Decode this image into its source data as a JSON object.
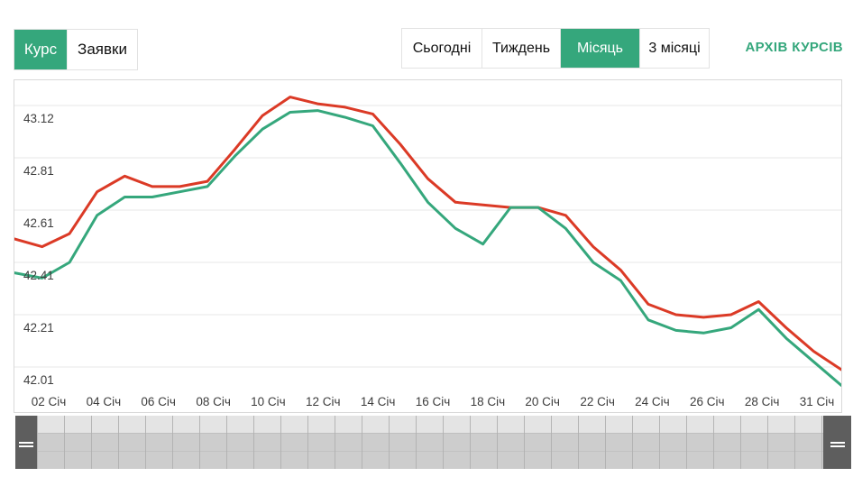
{
  "toggle": {
    "items": [
      {
        "label": "Курс",
        "active": true
      },
      {
        "label": "Заявки",
        "active": false
      }
    ]
  },
  "range_tabs": {
    "items": [
      {
        "label": "Сьогодні",
        "active": false
      },
      {
        "label": "Тиждень",
        "active": false
      },
      {
        "label": "Місяць",
        "active": true
      },
      {
        "label": "3 місяці",
        "active": false
      }
    ]
  },
  "archive_link": "АРХІВ КУРСІВ",
  "colors": {
    "accent_green": "#35a77c",
    "line_red": "#db3a26",
    "line_green": "#35a77c",
    "gridline": "#e7e7e7",
    "axis_text": "#3d3d3d",
    "chart_border": "#d9d9d9",
    "nav_handle": "#5e5e5e"
  },
  "chart_data": {
    "type": "line",
    "title": "",
    "xlabel": "",
    "ylabel": "",
    "grid": true,
    "legend": "none",
    "y_ticks": [
      43.12,
      42.81,
      42.61,
      42.41,
      42.21,
      42.01
    ],
    "ylim": [
      41.9,
      43.18
    ],
    "x_labels": [
      "02 Січ",
      "04 Січ",
      "06 Січ",
      "08 Січ",
      "10 Січ",
      "12 Січ",
      "14 Січ",
      "16 Січ",
      "18 Січ",
      "20 Січ",
      "22 Січ",
      "24 Січ",
      "26 Січ",
      "28 Січ",
      "31 Січ"
    ],
    "x_days": [
      1,
      2,
      3,
      4,
      5,
      6,
      7,
      8,
      9,
      10,
      11,
      12,
      13,
      14,
      15,
      16,
      17,
      18,
      19,
      20,
      21,
      22,
      23,
      24,
      25,
      26,
      27,
      28,
      29,
      30,
      31
    ],
    "series": [
      {
        "name": "line_red",
        "color": "#db3a26",
        "values": [
          42.5,
          42.47,
          42.52,
          42.68,
          42.74,
          42.7,
          42.7,
          42.72,
          42.86,
          43.06,
          43.17,
          43.13,
          43.11,
          43.07,
          42.89,
          42.73,
          42.64,
          42.63,
          42.62,
          42.62,
          42.59,
          42.47,
          42.38,
          42.25,
          42.21,
          42.2,
          42.21,
          42.26,
          42.16,
          42.07,
          42.0
        ]
      },
      {
        "name": "line_green",
        "color": "#35a77c",
        "values": [
          42.37,
          42.35,
          42.41,
          42.59,
          42.66,
          42.66,
          42.68,
          42.7,
          42.82,
          42.98,
          43.08,
          43.09,
          43.05,
          43.0,
          42.79,
          42.64,
          42.54,
          42.48,
          42.62,
          42.62,
          42.54,
          42.41,
          42.34,
          42.19,
          42.15,
          42.14,
          42.16,
          42.23,
          42.12,
          42.03,
          41.94
        ]
      }
    ]
  }
}
